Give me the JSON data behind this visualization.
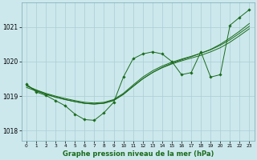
{
  "background_color": "#cce8ed",
  "grid_color": "#aacdd4",
  "line_color": "#1a6b1a",
  "marker_color": "#1a6b1a",
  "title": "Graphe pression niveau de la mer (hPa)",
  "ylabel_ticks": [
    1018,
    1019,
    1020,
    1021
  ],
  "xlim": [
    -0.5,
    23.5
  ],
  "ylim": [
    1017.7,
    1021.7
  ],
  "x_ticks": [
    0,
    1,
    2,
    3,
    4,
    5,
    6,
    7,
    8,
    9,
    10,
    11,
    12,
    13,
    14,
    15,
    16,
    17,
    18,
    19,
    20,
    21,
    22,
    23
  ],
  "smooth1_x": [
    0,
    1,
    2,
    3,
    4,
    5,
    6,
    7,
    8,
    9,
    10,
    11,
    12,
    13,
    14,
    15,
    16,
    17,
    18,
    19,
    20,
    21,
    22,
    23
  ],
  "smooth1_y": [
    1019.25,
    1019.15,
    1019.05,
    1018.97,
    1018.9,
    1018.84,
    1018.79,
    1018.77,
    1018.8,
    1018.88,
    1019.05,
    1019.28,
    1019.5,
    1019.68,
    1019.83,
    1019.95,
    1020.05,
    1020.14,
    1020.24,
    1020.35,
    1020.5,
    1020.68,
    1020.88,
    1021.1
  ],
  "smooth2_x": [
    0,
    1,
    2,
    3,
    4,
    5,
    6,
    7,
    8,
    9,
    10,
    11,
    12,
    13,
    14,
    15,
    16,
    17,
    18,
    19,
    20,
    21,
    22,
    23
  ],
  "smooth2_y": [
    1019.3,
    1019.18,
    1019.08,
    1019.0,
    1018.93,
    1018.87,
    1018.82,
    1018.8,
    1018.82,
    1018.9,
    1019.08,
    1019.32,
    1019.55,
    1019.73,
    1019.87,
    1019.98,
    1020.07,
    1020.15,
    1020.24,
    1020.34,
    1020.47,
    1020.63,
    1020.82,
    1021.02
  ],
  "smooth3_x": [
    0,
    1,
    2,
    3,
    4,
    5,
    6,
    7,
    8,
    9,
    10,
    11,
    12,
    13,
    14,
    15,
    16,
    17,
    18,
    19,
    20,
    21,
    22,
    23
  ],
  "smooth3_y": [
    1019.3,
    1019.17,
    1019.06,
    1018.97,
    1018.9,
    1018.84,
    1018.79,
    1018.77,
    1018.79,
    1018.87,
    1019.05,
    1019.28,
    1019.5,
    1019.68,
    1019.82,
    1019.93,
    1020.02,
    1020.1,
    1020.18,
    1020.28,
    1020.4,
    1020.56,
    1020.75,
    1020.95
  ],
  "zigzag_x": [
    0,
    1,
    2,
    3,
    4,
    5,
    6,
    7,
    8,
    9,
    10,
    11,
    12,
    13,
    14,
    15,
    16,
    17,
    18,
    19,
    20,
    21,
    22,
    23
  ],
  "zigzag_y": [
    1019.35,
    1019.12,
    1019.02,
    1018.87,
    1018.72,
    1018.48,
    1018.32,
    1018.3,
    1018.52,
    1018.82,
    1019.55,
    1020.08,
    1020.22,
    1020.28,
    1020.22,
    1020.0,
    1019.62,
    1019.68,
    1020.28,
    1019.55,
    1019.62,
    1021.05,
    1021.28,
    1021.5
  ]
}
